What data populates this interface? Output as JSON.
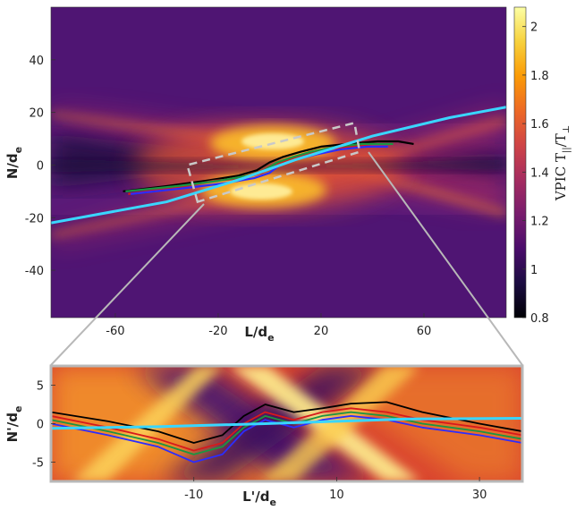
{
  "chart_data": [
    {
      "type": "heatmap",
      "panel": "main",
      "xlabel": "L/d",
      "xlabel_sub": "e",
      "ylabel": "N/d",
      "ylabel_sub": "e",
      "xlim": [
        -85,
        92
      ],
      "ylim": [
        -58,
        60
      ],
      "xticks": [
        -60,
        -20,
        20,
        60
      ],
      "yticks": [
        40,
        20,
        0,
        -20,
        -40
      ],
      "colorbar": {
        "label": "VPIC T",
        "label_sub1": "||",
        "label_mid": "/T",
        "label_sub2": "⊥",
        "range": [
          0.8,
          2.08
        ],
        "ticks": [
          0.8,
          1,
          1.2,
          1.4,
          1.6,
          1.8,
          2
        ],
        "colormap": [
          "#000004",
          "#1b0c41",
          "#4a0c6b",
          "#781c6d",
          "#a52c60",
          "#cf4446",
          "#ed6925",
          "#fb9b06",
          "#f7d13d",
          "#fcffa4"
        ]
      },
      "separatrix_color": "#3ad6ff",
      "separatrix": [
        [
          -85,
          -22
        ],
        [
          -40,
          -14
        ],
        [
          -10,
          -5
        ],
        [
          10,
          2
        ],
        [
          40,
          11
        ],
        [
          70,
          18
        ],
        [
          92,
          22
        ]
      ],
      "zoom_box": {
        "corners": [
          [
            -28,
            -14
          ],
          [
            -32,
            0
          ],
          [
            33,
            16
          ],
          [
            35,
            5
          ]
        ]
      },
      "trajectories": [
        {
          "color": "#000000",
          "points": [
            [
              -57,
              -10
            ],
            [
              -40,
              -8
            ],
            [
              -25,
              -6
            ],
            [
              -12,
              -4
            ],
            [
              -5,
              -2
            ],
            [
              0,
              1
            ],
            [
              5,
              3
            ],
            [
              12,
              5
            ],
            [
              20,
              7
            ],
            [
              30,
              8
            ],
            [
              42,
              9
            ],
            [
              50,
              9
            ],
            [
              56,
              8
            ]
          ]
        },
        {
          "color": "#d7191c",
          "points": [
            [
              -55,
              -11
            ],
            [
              -38,
              -9
            ],
            [
              -22,
              -6
            ],
            [
              -10,
              -5
            ],
            [
              -3,
              -3
            ],
            [
              2,
              0
            ],
            [
              7,
              2
            ],
            [
              14,
              4
            ],
            [
              22,
              6
            ],
            [
              32,
              7
            ],
            [
              40,
              8
            ]
          ]
        },
        {
          "color": "#1a9641",
          "points": [
            [
              -56,
              -10
            ],
            [
              -36,
              -8
            ],
            [
              -20,
              -6
            ],
            [
              -8,
              -4
            ],
            [
              -2,
              -2
            ],
            [
              3,
              1
            ],
            [
              9,
              3
            ],
            [
              16,
              5
            ],
            [
              26,
              7
            ],
            [
              36,
              8
            ],
            [
              48,
              8
            ]
          ]
        },
        {
          "color": "#2c2cff",
          "points": [
            [
              -54,
              -11
            ],
            [
              -35,
              -9
            ],
            [
              -18,
              -7
            ],
            [
              -6,
              -5
            ],
            [
              0,
              -3
            ],
            [
              4,
              0
            ],
            [
              10,
              2
            ],
            [
              18,
              4
            ],
            [
              28,
              6
            ],
            [
              38,
              7
            ],
            [
              46,
              7
            ]
          ]
        }
      ]
    },
    {
      "type": "heatmap",
      "panel": "zoom",
      "xlabel": "L'/d",
      "xlabel_sub": "e",
      "ylabel": "N'/d",
      "ylabel_sub": "e",
      "xlim": [
        -30,
        36
      ],
      "ylim": [
        -7.5,
        7.5
      ],
      "xticks": [
        -10,
        10,
        30
      ],
      "yticks": [
        5,
        0,
        -5
      ],
      "separatrix": [
        [
          -30,
          -0.6
        ],
        [
          -15,
          -0.4
        ],
        [
          0,
          0
        ],
        [
          10,
          0.3
        ],
        [
          20,
          0.6
        ],
        [
          36,
          0.7
        ]
      ],
      "trajectories": [
        {
          "color": "#000000",
          "points": [
            [
              -30,
              1.5
            ],
            [
              -22,
              0.3
            ],
            [
              -15,
              -1
            ],
            [
              -10,
              -2.5
            ],
            [
              -6,
              -1.5
            ],
            [
              -3,
              1
            ],
            [
              0,
              2.5
            ],
            [
              4,
              1.5
            ],
            [
              8,
              2
            ],
            [
              12,
              2.6
            ],
            [
              17,
              2.8
            ],
            [
              22,
              1.5
            ],
            [
              30,
              0
            ],
            [
              36,
              -1
            ]
          ]
        },
        {
          "color": "#d7191c",
          "points": [
            [
              -30,
              1
            ],
            [
              -22,
              -0.5
            ],
            [
              -15,
              -2
            ],
            [
              -10,
              -3.5
            ],
            [
              -6,
              -2.5
            ],
            [
              -3,
              0
            ],
            [
              0,
              1.5
            ],
            [
              4,
              0.5
            ],
            [
              8,
              1.5
            ],
            [
              12,
              2
            ],
            [
              17,
              1.5
            ],
            [
              22,
              0.5
            ],
            [
              30,
              -0.5
            ],
            [
              36,
              -1.5
            ]
          ]
        },
        {
          "color": "#1a9641",
          "points": [
            [
              -30,
              0.5
            ],
            [
              -22,
              -1
            ],
            [
              -15,
              -2.5
            ],
            [
              -10,
              -4
            ],
            [
              -6,
              -3
            ],
            [
              -3,
              -0.5
            ],
            [
              0,
              1
            ],
            [
              4,
              0
            ],
            [
              8,
              1
            ],
            [
              12,
              1.5
            ],
            [
              17,
              1
            ],
            [
              22,
              0
            ],
            [
              30,
              -1
            ],
            [
              36,
              -2
            ]
          ]
        },
        {
          "color": "#2c2cff",
          "points": [
            [
              -30,
              0
            ],
            [
              -22,
              -1.5
            ],
            [
              -15,
              -3
            ],
            [
              -10,
              -5
            ],
            [
              -6,
              -4
            ],
            [
              -3,
              -1
            ],
            [
              0,
              0.5
            ],
            [
              4,
              -0.5
            ],
            [
              8,
              0.5
            ],
            [
              12,
              1
            ],
            [
              17,
              0.5
            ],
            [
              22,
              -0.5
            ],
            [
              30,
              -1.5
            ],
            [
              36,
              -2.5
            ]
          ]
        }
      ]
    }
  ]
}
